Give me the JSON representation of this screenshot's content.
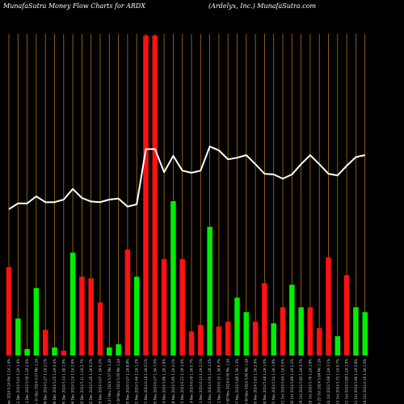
{
  "header": {
    "left": "MunafaSutra  Money Flow  Charts for ARDX",
    "right": "(Ardelyx, Inc.) MunafaSutra.com"
  },
  "colors": {
    "background": "#000000",
    "up": "#00ee00",
    "down": "#ff1111",
    "line": "#ffffff",
    "grid": "#b5730b"
  },
  "chart_data": {
    "type": "bar",
    "title": "MunafaSutra  Money Flow  Charts for ARDX",
    "subtitle": "(Ardelyx, Inc.) MunafaSutra.com",
    "ylim": [
      0,
      100
    ],
    "grid": "vertical",
    "categories": [
      "Fri 13 Dec 2024 5.24 Md 1.1A 1.4% ",
      "Thu 12 Dec 2024 5.02 1.2A 1.4% ",
      "Wed 11 Dec 2024 5.09 1.2A 2.5% ",
      "Tue 10 Dec 2024 5.07 Me 1.2A ",
      "Mon 09 Dec 2024 5.27 1.2A 2.1% ",
      "Fri 06 Dec 2024 5.25 1.2A 0.4% ",
      "Thu 05 Dec 2024 5.14 1.3A 1.9% ",
      "Wed 04 Dec 2024 5.24 1.1A 2.6% ",
      "Tue 03 Dec 2024 5.11 1.2A 2.7% ",
      "Mon 02 Dec 2024 5.26 1.2A 0.2% ",
      "Fri 29 Nov 2024 5.07 1.3A 0.2% ",
      "Wed 27 Nov 2024 5.07 Me 1.2A ",
      "Tue 26 Nov 2024 5.00 Me 1.2A ",
      "Mon 25 Nov 2024 5.07 1.2A 8.8% ",
      "Fri 22 Nov 2024 5.46 1.2A 1.2% ",
      "Thu 21 Nov 2024 6.18 1.3A 5.1% ",
      "Wed 20 Nov 2024 6.07 1.3A 7.0% ",
      "Tue 19 Nov 2024 5.86 1.3A 1.8% ",
      "Mon 18 Nov 2024 5.95 1.2A 2.1% ",
      "Fri 15 Nov 2024 6.22 1.3A 3.4% ",
      "Thu 14 Nov 2024 6.09 1.3A 0.7% ",
      "Wed 13 Nov 2024 6.13 1.2A 2.1% ",
      "Tue 12 Nov 2024 6.00 1.2A 1.0% ",
      "Mon 11 Nov 2024 6.10 1.3A 6.7% ",
      "Fri 08 Nov 2024 6.00 Me 1.2A ",
      "Thu 07 Nov 2024 5.89 1.3A 1.3% ",
      "Wed 06 Nov 2024 5.80 Me 1.2A ",
      "Tue 05 Nov 2024 5.63 1.3A 2.9% ",
      "Mon 04 Nov 2024 5.48 1.2A 1.0% ",
      "Fri 01 Nov 2024 5.54 1.3A 1.9% ",
      "Thu 31 Oct 2024 5.64 1.1A 5.0% ",
      "Wed 30 Oct 2024 5.89 1.2A 2.2% ",
      "Tue 29 Oct 2024 5.90 1.2A 4.7% ",
      "Mon 28 Oct 2024 5.76 1.2A 1.9% ",
      "Fri 25 Oct 2024 5.64 Me 1.2A ",
      "Thu 24 Oct 2024 5.68 1.2A 3.1% ",
      "Wed 23 Oct 2024 5.72 1.1A 0.7% ",
      "Tue 22 Oct 2024 5.89 1.2A 1.9% ",
      "Mon 21 Oct 2024 5.96 1.2A 0.8% ",
      "Fri 18 Oct 2024 6.16 1.3A 1.0% "
    ],
    "series": [
      {
        "colors": [
          "red",
          "green",
          "green",
          "green",
          "red",
          "green",
          "red",
          "green",
          "red",
          "red",
          "red",
          "green",
          "green",
          "red",
          "green",
          "red",
          "red",
          "red",
          "green",
          "red",
          "red",
          "red",
          "green",
          "red",
          "red",
          "green",
          "green",
          "red",
          "red",
          "green",
          "red",
          "green",
          "green",
          "red",
          "red",
          "red",
          "green",
          "red",
          "green",
          "green"
        ],
        "values": [
          27.5,
          11.5,
          2.0,
          21.0,
          8.0,
          2.5,
          1.5,
          32.0,
          24.5,
          24.0,
          16.5,
          2.5,
          3.5,
          33.0,
          24.5,
          99.5,
          99.5,
          30.0,
          48.0,
          30.0,
          7.5,
          9.5,
          40.0,
          9.0,
          10.5,
          18.0,
          13.5,
          10.5,
          22.5,
          10.0,
          15.0,
          22.0,
          15.0,
          15.0,
          8.5,
          30.5,
          6.0,
          25.0,
          15.0,
          13.5
        ]
      },
      {
        "type": "line",
        "values": [
          45.5,
          47.3,
          47.3,
          49.5,
          47.7,
          47.7,
          48.5,
          51.8,
          49.0,
          47.9,
          47.7,
          48.5,
          48.8,
          46.3,
          47.0,
          64.2,
          64.2,
          57.0,
          62.1,
          57.5,
          56.8,
          57.5,
          65.0,
          63.8,
          61.0,
          61.5,
          62.3,
          59.5,
          56.5,
          56.3,
          55.0,
          56.3,
          59.5,
          62.3,
          59.5,
          56.5,
          56.0,
          59.0,
          61.7,
          62.3
        ]
      }
    ]
  }
}
